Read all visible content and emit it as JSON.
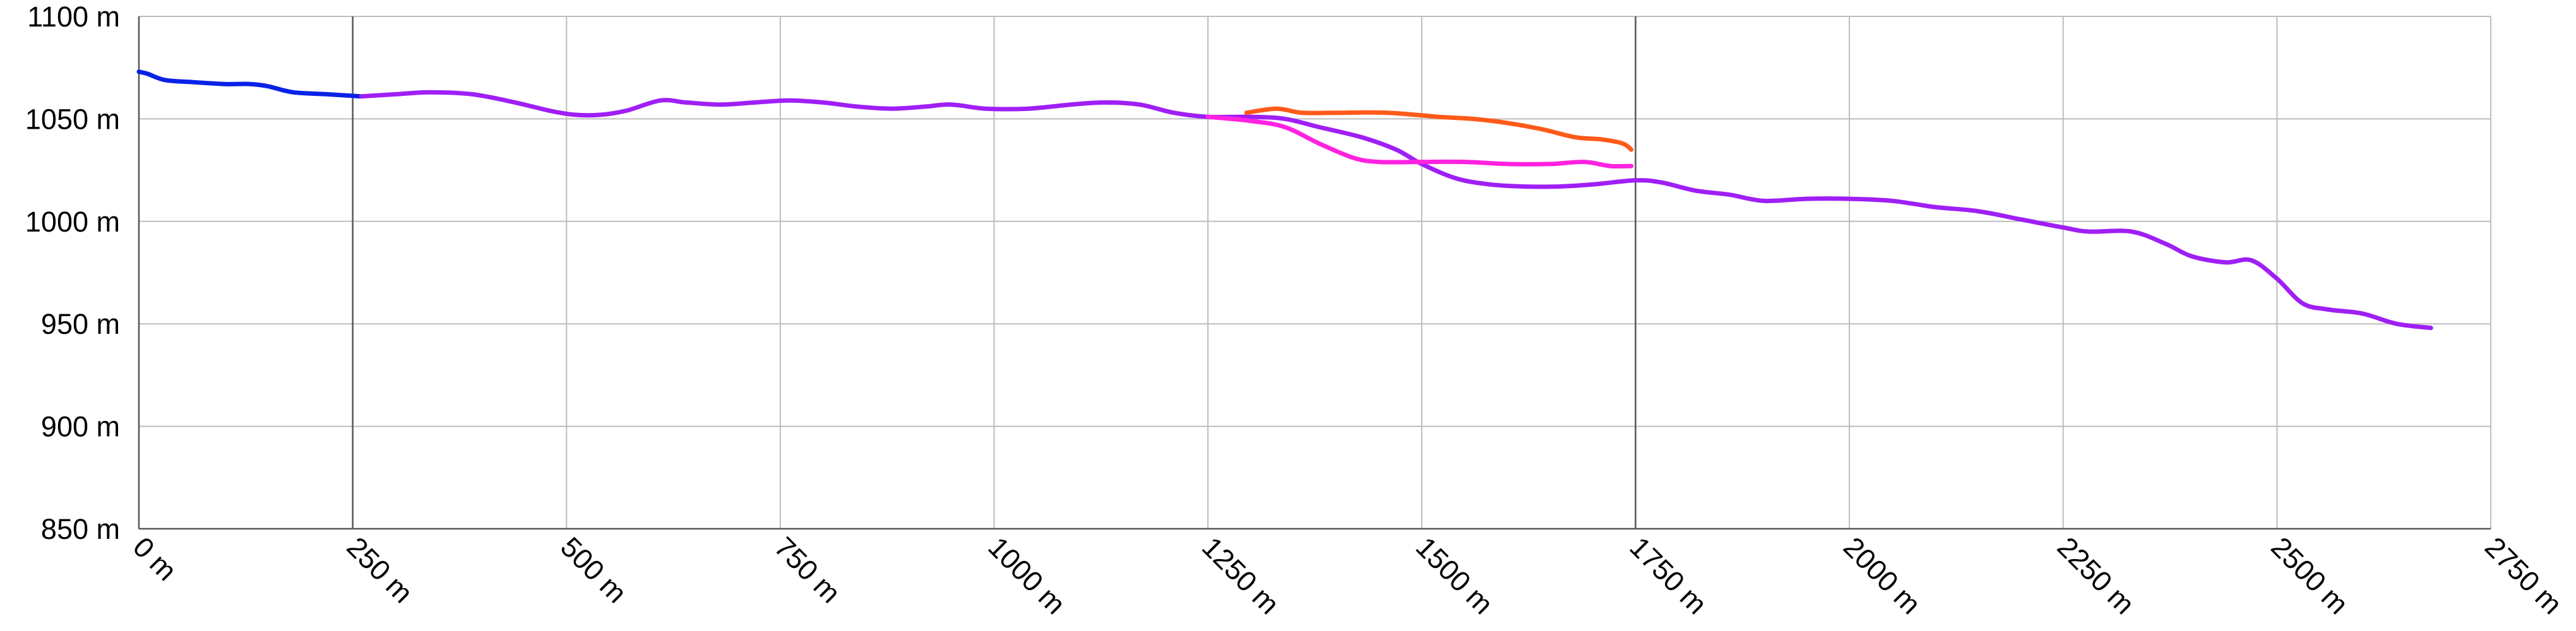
{
  "chart_data": {
    "type": "line",
    "title": "",
    "xlabel": "",
    "ylabel": "",
    "xlim": [
      0,
      2750
    ],
    "ylim": [
      850,
      1100
    ],
    "x_ticks": [
      0,
      250,
      500,
      750,
      1000,
      1250,
      1500,
      1750,
      2000,
      2250,
      2500,
      2750
    ],
    "x_tick_labels": [
      "0 m",
      "250 m",
      "500 m",
      "750 m",
      "1000 m",
      "1250 m",
      "1500 m",
      "1750 m",
      "2000 m",
      "2250 m",
      "2500 m",
      "2750 m"
    ],
    "y_ticks": [
      850,
      900,
      950,
      1000,
      1050,
      1100
    ],
    "y_tick_labels": [
      "850 m",
      "900 m",
      "950 m",
      "1000 m",
      "1050 m",
      "1100 m"
    ],
    "emphasized_x_gridlines": [
      250,
      1750
    ],
    "grid": true,
    "legend": "none",
    "series": [
      {
        "color": "#0a22e6",
        "points": [
          [
            0,
            1073
          ],
          [
            10,
            1072
          ],
          [
            30,
            1069
          ],
          [
            60,
            1068
          ],
          [
            100,
            1067
          ],
          [
            130,
            1067
          ],
          [
            150,
            1066
          ],
          [
            180,
            1063
          ],
          [
            220,
            1062
          ],
          [
            260,
            1061
          ]
        ]
      },
      {
        "color": "#9f1ff5",
        "points": [
          [
            260,
            1061
          ],
          [
            300,
            1062
          ],
          [
            340,
            1063
          ],
          [
            390,
            1062
          ],
          [
            440,
            1058
          ],
          [
            480,
            1054
          ],
          [
            510,
            1052
          ],
          [
            540,
            1052
          ],
          [
            570,
            1054
          ],
          [
            610,
            1059
          ],
          [
            640,
            1058
          ],
          [
            680,
            1057
          ],
          [
            720,
            1058
          ],
          [
            760,
            1059
          ],
          [
            800,
            1058
          ],
          [
            840,
            1056
          ],
          [
            880,
            1055
          ],
          [
            920,
            1056
          ],
          [
            950,
            1057
          ],
          [
            990,
            1055
          ],
          [
            1040,
            1055
          ],
          [
            1090,
            1057
          ],
          [
            1130,
            1058
          ],
          [
            1170,
            1057
          ],
          [
            1210,
            1053
          ],
          [
            1250,
            1051
          ],
          [
            1300,
            1051
          ],
          [
            1340,
            1050
          ],
          [
            1380,
            1046
          ],
          [
            1430,
            1041
          ],
          [
            1470,
            1035
          ],
          [
            1500,
            1028
          ],
          [
            1540,
            1021
          ],
          [
            1580,
            1018
          ],
          [
            1620,
            1017
          ],
          [
            1660,
            1017
          ],
          [
            1700,
            1018
          ],
          [
            1750,
            1020
          ],
          [
            1780,
            1019
          ],
          [
            1820,
            1015
          ],
          [
            1860,
            1013
          ],
          [
            1900,
            1010
          ],
          [
            1950,
            1011
          ],
          [
            2000,
            1011
          ],
          [
            2050,
            1010
          ],
          [
            2100,
            1007
          ],
          [
            2150,
            1005
          ],
          [
            2200,
            1001
          ],
          [
            2250,
            997
          ],
          [
            2280,
            995
          ],
          [
            2330,
            995
          ],
          [
            2370,
            989
          ],
          [
            2400,
            983
          ],
          [
            2440,
            980
          ],
          [
            2470,
            981
          ],
          [
            2500,
            972
          ],
          [
            2530,
            960
          ],
          [
            2560,
            957
          ],
          [
            2600,
            955
          ],
          [
            2640,
            950
          ],
          [
            2680,
            948
          ]
        ]
      },
      {
        "color": "#ff22e0",
        "points": [
          [
            1250,
            1051
          ],
          [
            1300,
            1049
          ],
          [
            1340,
            1046
          ],
          [
            1380,
            1038
          ],
          [
            1420,
            1031
          ],
          [
            1450,
            1029
          ],
          [
            1500,
            1029
          ],
          [
            1550,
            1029
          ],
          [
            1600,
            1028
          ],
          [
            1650,
            1028
          ],
          [
            1690,
            1029
          ],
          [
            1720,
            1027
          ],
          [
            1745,
            1027
          ]
        ]
      },
      {
        "color": "#ff5a1a",
        "points": [
          [
            1295,
            1053
          ],
          [
            1330,
            1055
          ],
          [
            1360,
            1053
          ],
          [
            1400,
            1053
          ],
          [
            1460,
            1053
          ],
          [
            1520,
            1051
          ],
          [
            1560,
            1050
          ],
          [
            1600,
            1048
          ],
          [
            1640,
            1045
          ],
          [
            1680,
            1041
          ],
          [
            1710,
            1040
          ],
          [
            1735,
            1038
          ],
          [
            1745,
            1035
          ]
        ]
      }
    ]
  }
}
